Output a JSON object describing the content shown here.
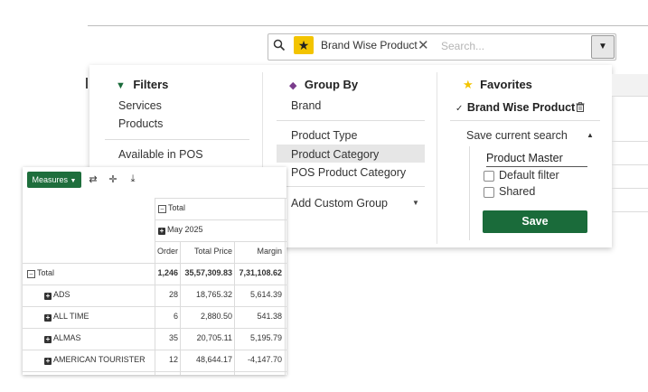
{
  "search": {
    "facet_label": "Brand Wise Product",
    "placeholder": "Search..."
  },
  "filters": {
    "title": "Filters",
    "items": [
      "Services",
      "Products"
    ],
    "extra_item": "Available in POS"
  },
  "group_by": {
    "title": "Group By",
    "items": [
      "Brand",
      "Product Type",
      "Product Category",
      "POS Product Category"
    ],
    "highlighted": "Product Category",
    "add_custom": "Add Custom Group"
  },
  "favorites": {
    "title": "Favorites",
    "saved_item": "Brand Wise Product",
    "save_current": "Save current search",
    "name_value": "Product Master",
    "default_filter": "Default filter",
    "shared": "Shared",
    "save_button": "Save"
  },
  "pivot": {
    "measures_label": "Measures",
    "col_total": "Total",
    "col_period": "May 2025",
    "headers": [
      "Order",
      "Total Price",
      "Margin"
    ],
    "total_row": {
      "label": "Total",
      "order": "1,246",
      "total_price": "35,57,309.83",
      "margin": "7,31,108.62"
    },
    "rows": [
      {
        "label": "ADS",
        "order": "28",
        "total_price": "18,765.32",
        "margin": "5,614.39"
      },
      {
        "label": "ALL TIME",
        "order": "6",
        "total_price": "2,880.50",
        "margin": "541.38"
      },
      {
        "label": "ALMAS",
        "order": "35",
        "total_price": "20,705.11",
        "margin": "5,195.79"
      },
      {
        "label": "AMERICAN TOURISTER",
        "order": "12",
        "total_price": "48,644.17",
        "margin": "-4,147.70"
      }
    ]
  },
  "colors": {
    "accent_green": "#1a6b3a",
    "favorite_yellow": "#f3c400",
    "highlight": "#e6e6e6"
  }
}
